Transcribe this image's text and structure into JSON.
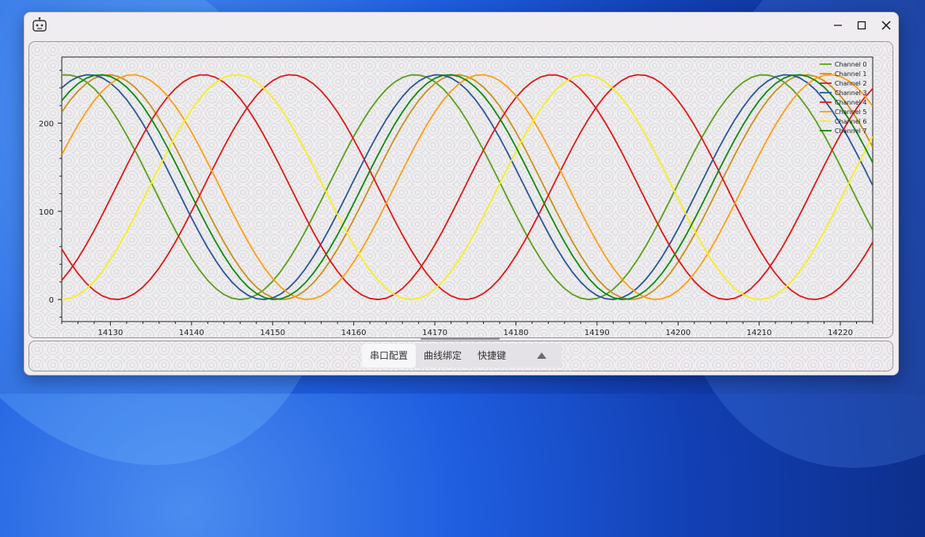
{
  "window": {
    "controls": {
      "minimize": "minimize-icon",
      "maximize": "maximize-icon",
      "close": "close-icon"
    }
  },
  "tabs": [
    {
      "label": "串口配置",
      "active": true
    },
    {
      "label": "曲线绑定",
      "active": false
    },
    {
      "label": "快捷键",
      "active": false
    }
  ],
  "tab_toggle_icon": "triangle-up-icon",
  "chart_data": {
    "type": "line",
    "title": "",
    "xlabel": "",
    "ylabel": "",
    "xlim": [
      14124,
      14224
    ],
    "ylim": [
      -25,
      275
    ],
    "x_ticks": [
      14130,
      14140,
      14150,
      14160,
      14170,
      14180,
      14190,
      14200,
      14210,
      14220
    ],
    "y_ticks": [
      0,
      100,
      200
    ],
    "grid": false,
    "legend_position": "top-right",
    "series_model": "y = 127.5 + 127.5 * sin(2*pi*(x - x0)/period); period = 43 samples",
    "series": [
      {
        "name": "Channel 0",
        "color": "#5a9e1a",
        "period": 43,
        "phase_x": 14113.8
      },
      {
        "name": "Channel 1",
        "color": "#c8901c",
        "period": 43,
        "phase_x": 14119.0
      },
      {
        "name": "Channel 2",
        "color": "#e01818",
        "period": 43,
        "phase_x": 14141.5
      },
      {
        "name": "Channel 3",
        "color": "#2a5599",
        "period": 43,
        "phase_x": 14116.6
      },
      {
        "name": "Channel 4",
        "color": "#e01818",
        "period": 43,
        "phase_x": 14130.7
      },
      {
        "name": "Channel 5",
        "color": "#ff9e12",
        "period": 43,
        "phase_x": 14122.0
      },
      {
        "name": "Channel 6",
        "color": "#f6ef1c",
        "period": 43,
        "phase_x": 14134.8
      },
      {
        "name": "Channel 7",
        "color": "#0e8a0e",
        "period": 43,
        "phase_x": 14118.0
      }
    ]
  }
}
